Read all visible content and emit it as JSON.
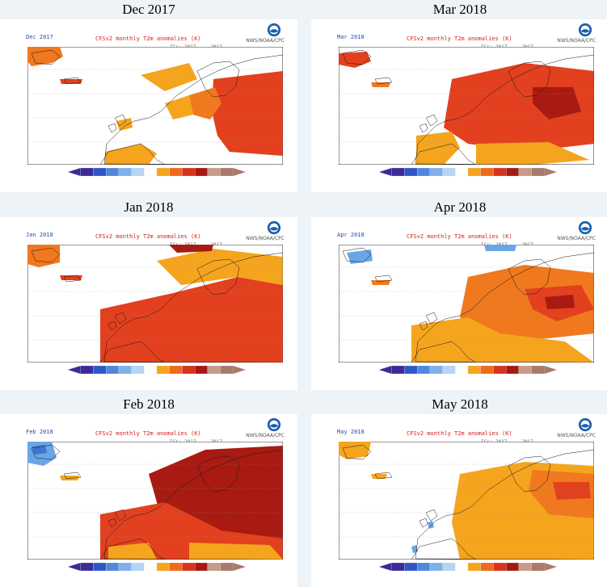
{
  "panels": [
    {
      "title": "Dec 2017",
      "map_label": "Dec 2017",
      "caption": "CFSv2 monthly T2m anomalies (K)",
      "org": "NWS/NOAA/CPC",
      "subcaption": "ICs: 2017 ... 2017"
    },
    {
      "title": "Mar 2018",
      "map_label": "Mar 2018",
      "caption": "CFSv2 monthly T2m anomalies (K)",
      "org": "NWS/NOAA/CPC",
      "subcaption": "ICs: 2017 ... 2017"
    },
    {
      "title": "Jan 2018",
      "map_label": "Jan 2018",
      "caption": "CFSv2 monthly T2m anomalies (K)",
      "org": "NWS/NOAA/CPC",
      "subcaption": "ICs: 2017 ... 2017"
    },
    {
      "title": "Apr 2018",
      "map_label": "Apr 2018",
      "caption": "CFSv2 monthly T2m anomalies (K)",
      "org": "NWS/NOAA/CPC",
      "subcaption": "ICs: 2017 ... 2017"
    },
    {
      "title": "Feb 2018",
      "map_label": "Feb 2018",
      "caption": "CFSv2 monthly T2m anomalies (K)",
      "org": "NWS/NOAA/CPC",
      "subcaption": "ICs: 2017 ... 2017"
    },
    {
      "title": "May 2018",
      "map_label": "May 2018",
      "caption": "CFSv2 monthly T2m anomalies (K)",
      "org": "NWS/NOAA/CPC",
      "subcaption": "ICs: 2017 ... 2017"
    }
  ],
  "colorbar": {
    "colors": [
      "#3b2a98",
      "#2f55c8",
      "#4f87da",
      "#7fb0ea",
      "#b6d4f4",
      "#ffffff",
      "#f5a41e",
      "#ef6a1e",
      "#d8321c",
      "#a61812",
      "#c89a8a",
      "#a97a6a"
    ]
  },
  "anomaly_colors": {
    "light_orange": "#f5a41e",
    "orange": "#f0781e",
    "red": "#e2401e",
    "dark_red": "#a81a12",
    "light_blue": "#6aa5e6",
    "blue": "#3f74cf"
  }
}
